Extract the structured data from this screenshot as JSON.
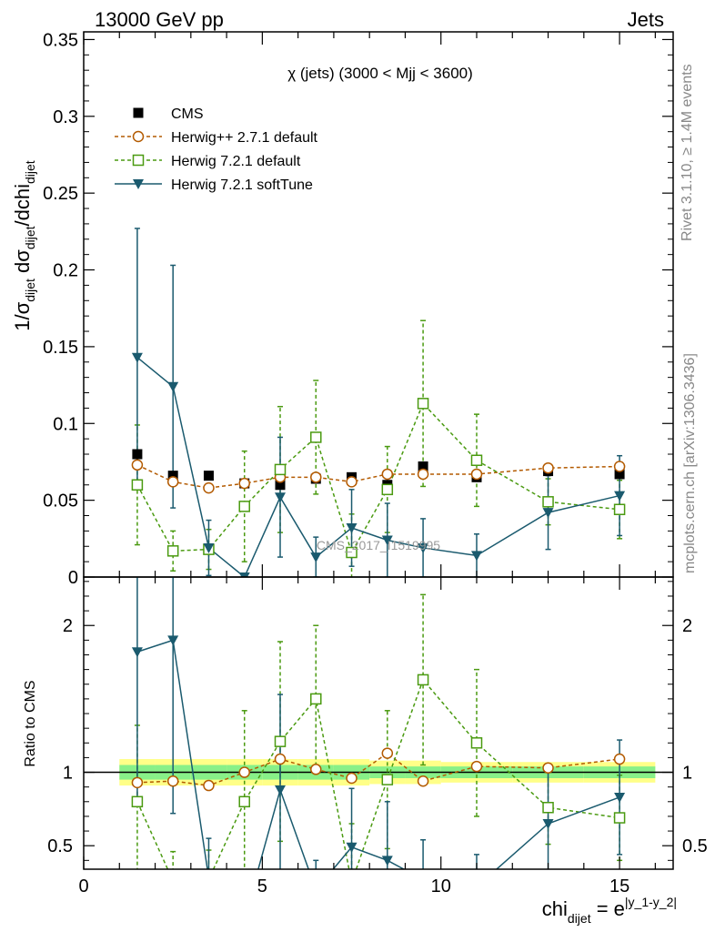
{
  "header": {
    "left": "13000 GeV pp",
    "right": "Jets"
  },
  "side_text": {
    "rivet": "Rivet 3.1.10, ≥ 1.4M events",
    "mcplots": "mcplots.cern.ch [arXiv:1306.3436]"
  },
  "watermark": "CMS_2017_I1519995",
  "chart_data": {
    "type": "line",
    "title": "χ (jets) (3000 < Mjj < 3600)",
    "xlabel": "chi_dijet = e^|y_1-y_2|",
    "ylabel": "1/σ_dijet dσ_dijet/dchi_dijet",
    "ratio_ylabel": "Ratio to CMS",
    "xlim": [
      0,
      16.5
    ],
    "ylim": [
      0,
      0.355
    ],
    "ratio_ylim": [
      0.34,
      2.33
    ],
    "x_ticks": [
      "0",
      "5",
      "10",
      "15"
    ],
    "y_ticks": [
      "0",
      "0.05",
      "0.1",
      "0.15",
      "0.2",
      "0.25",
      "0.3",
      "0.35"
    ],
    "ratio_y_ticks": [
      "0.5",
      "1",
      "2"
    ],
    "legend_position": "top-left",
    "bins": [
      [
        1,
        2
      ],
      [
        2,
        3
      ],
      [
        3,
        4
      ],
      [
        4,
        5
      ],
      [
        5,
        6
      ],
      [
        6,
        7
      ],
      [
        7,
        8
      ],
      [
        8,
        9
      ],
      [
        9,
        10
      ],
      [
        10,
        12
      ],
      [
        12,
        14
      ],
      [
        14,
        16
      ]
    ],
    "x": [
      1.5,
      2.5,
      3.5,
      4.5,
      5.5,
      6.5,
      7.5,
      8.5,
      9.5,
      11,
      13,
      15
    ],
    "reference": {
      "name": "CMS",
      "color": "#000000",
      "values": [
        0.08,
        0.066,
        0.066,
        0.061,
        0.06,
        0.064,
        0.065,
        0.06,
        0.072,
        0.065,
        0.069,
        0.067
      ],
      "band_inner": [
        0.05,
        0.05,
        0.05,
        0.05,
        0.05,
        0.05,
        0.05,
        0.04,
        0.04,
        0.04,
        0.04,
        0.04
      ],
      "band_outer": [
        0.09,
        0.09,
        0.09,
        0.09,
        0.09,
        0.09,
        0.09,
        0.08,
        0.08,
        0.07,
        0.07,
        0.07
      ]
    },
    "series": [
      {
        "name": "Herwig++ 2.7.1 default",
        "color": "#b35a00",
        "marker": "open-circle",
        "dash": true,
        "values": [
          0.073,
          0.062,
          0.058,
          0.061,
          0.065,
          0.065,
          0.062,
          0.067,
          0.067,
          0.067,
          0.071,
          0.072
        ],
        "errors": [
          0,
          0,
          0,
          0,
          0,
          0,
          0,
          0,
          0,
          0,
          0,
          0
        ],
        "ratio": [
          0.93,
          0.94,
          0.91,
          1.0,
          1.09,
          1.02,
          0.96,
          1.13,
          0.94,
          1.04,
          1.03,
          1.09
        ],
        "ratio_errors": [
          0,
          0,
          0,
          0,
          0,
          0,
          0,
          0,
          0,
          0,
          0,
          0
        ]
      },
      {
        "name": "Herwig 7.2.1 default",
        "color": "#4a9a10",
        "marker": "open-square",
        "dash": true,
        "values": [
          0.06,
          0.017,
          0.018,
          0.046,
          0.07,
          0.091,
          0.016,
          0.057,
          0.113,
          0.076,
          0.049,
          0.044
        ],
        "errors": [
          0.039,
          0.013,
          0.013,
          0.036,
          0.041,
          0.037,
          0.025,
          0.028,
          0.054,
          0.03,
          0.015,
          0.019
        ],
        "ratio": [
          0.8,
          0.26,
          0.27,
          0.8,
          1.21,
          1.5,
          0.25,
          0.95,
          1.63,
          1.2,
          0.76,
          0.69
        ],
        "ratio_errors": [
          0.52,
          0.2,
          0.2,
          0.62,
          0.68,
          0.5,
          0.4,
          0.47,
          0.58,
          0.5,
          0.25,
          0.29
        ]
      },
      {
        "name": "Herwig 7.2.1 softTune",
        "color": "#1a5a6e",
        "marker": "filled-triangle-down",
        "dash": false,
        "values": [
          0.143,
          0.124,
          0.019,
          0.0,
          0.052,
          0.013,
          0.032,
          0.024,
          0.019,
          0.014,
          0.042,
          0.053
        ],
        "errors": [
          0.084,
          0.079,
          0.018,
          0.0,
          0.039,
          0.013,
          0.025,
          0.024,
          0.019,
          0.014,
          0.024,
          0.026
        ],
        "ratio": [
          1.82,
          1.9,
          0.28,
          0.0,
          0.88,
          0.2,
          0.49,
          0.4,
          0.27,
          0.22,
          0.65,
          0.83
        ],
        "ratio_errors": [
          1.05,
          1.18,
          0.27,
          0.0,
          0.65,
          0.2,
          0.4,
          0.4,
          0.27,
          0.22,
          0.36,
          0.39
        ]
      }
    ]
  }
}
